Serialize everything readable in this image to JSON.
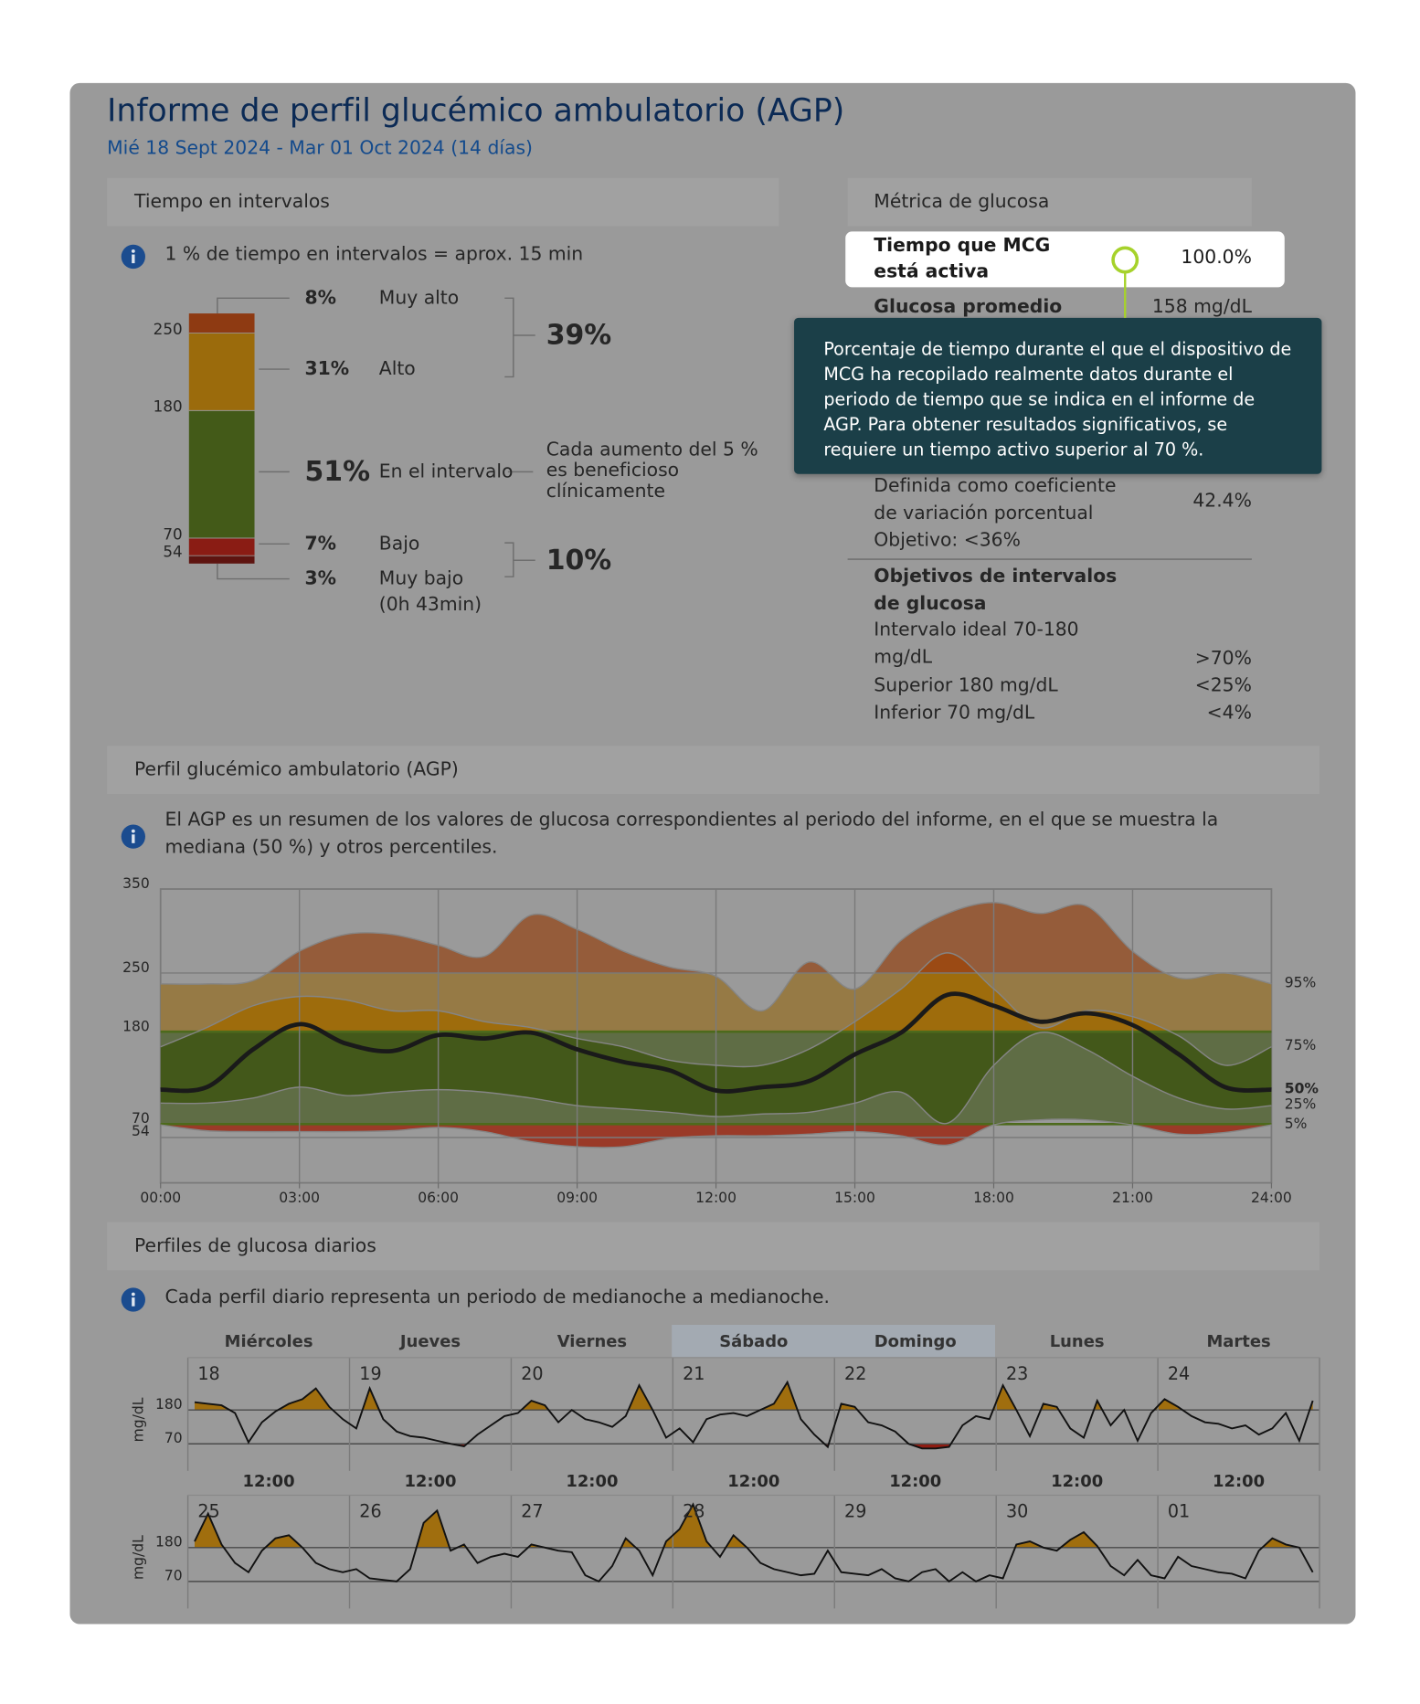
{
  "header": {
    "title": "Informe de perfil glucémico ambulatorio (AGP)",
    "date_range": "Mié 18 Sept 2024 - Mar 01 Oct 2024 (14 días)"
  },
  "time_in_ranges": {
    "heading": "Tiempo en intervalos",
    "info": "1 % de tiempo en intervalos = aprox. 15 min",
    "ranges": [
      {
        "label": "Muy alto",
        "color": "#8e3a12"
      },
      {
        "label": "Alto",
        "color": "#9b6b0c"
      },
      {
        "label": "En el intervalo",
        "color": "#435a18"
      },
      {
        "label": "Bajo",
        "color": "#8a1c14"
      },
      {
        "label": "Muy bajo",
        "color": "#5e1410"
      }
    ],
    "values": [
      8,
      31,
      51,
      7,
      3
    ],
    "value_labels": [
      "8%",
      "31%",
      "51%",
      "7%",
      "3%"
    ],
    "thresholds": [
      250,
      180,
      70,
      54
    ],
    "very_low_duration": "(0h 43min)",
    "groups": [
      "39%",
      "10%"
    ],
    "note": "Cada aumento del 5 % es beneficioso clínicamente"
  },
  "glucose_metrics": {
    "heading": "Métrica de glucosa",
    "active_time": {
      "label": "Tiempo que MCG está activa",
      "value": "100.0%"
    },
    "mean_glucose": {
      "label": "Glucosa promedio",
      "value": "158 mg/dL"
    },
    "variability": {
      "description": "Definida como coeficiente de variación porcentual",
      "target": "Objetivo: <36%",
      "value": "42.4%"
    },
    "targets": {
      "heading": "Objetivos de intervalos de glucosa",
      "rows": [
        [
          "Intervalo ideal 70-180 mg/dL",
          ">70%"
        ],
        [
          "Superior 180 mg/dL",
          "<25%"
        ],
        [
          "Inferior 70 mg/dL",
          "<4%"
        ]
      ]
    }
  },
  "tooltip": "Porcentaje de tiempo durante el que el dispositivo de MCG ha recopilado realmente datos durante el periodo de tiempo que se indica en el informe de AGP. Para obtener resultados significativos, se requiere un tiempo activo superior al 70 %.",
  "chart_data": {
    "type": "line",
    "title": "Perfil glucémico ambulatorio (AGP)",
    "subtitle": "El AGP es un resumen de los valores de glucosa correspondientes al periodo del informe, en el que se muestra la mediana (50 %) y otros percentiles.",
    "x": [
      0,
      1,
      2,
      3,
      4,
      5,
      6,
      7,
      8,
      9,
      10,
      11,
      12,
      13,
      14,
      15,
      16,
      17,
      18,
      19,
      20,
      21,
      22,
      23,
      24
    ],
    "xlim": [
      0,
      24
    ],
    "xticks": [
      {
        "value": 0,
        "label": "00:00"
      },
      {
        "value": 3,
        "label": "03:00"
      },
      {
        "value": 6,
        "label": "06:00"
      },
      {
        "value": 9,
        "label": "09:00"
      },
      {
        "value": 12,
        "label": "12:00"
      },
      {
        "value": 15,
        "label": "15:00"
      },
      {
        "value": 18,
        "label": "18:00"
      },
      {
        "value": 21,
        "label": "21:00"
      },
      {
        "value": 24,
        "label": "24:00"
      }
    ],
    "ylim": [
      0,
      350
    ],
    "yticks": [
      54,
      70,
      180,
      250,
      350
    ],
    "target_range": [
      70,
      180
    ],
    "band_colors": {
      "outer": [
        "#955c3a",
        "#967a45",
        "#5f6d45",
        "#9a3a28"
      ],
      "inner": [
        "#9b4a14",
        "#9e6c0c",
        "#43581a",
        "#8c1e12"
      ]
    },
    "series": [
      {
        "name": "95%",
        "color": "#858585",
        "values": [
          237,
          237,
          241,
          276,
          296,
          296,
          283,
          270,
          319,
          302,
          276,
          257,
          246,
          205,
          263,
          231,
          289,
          321,
          334,
          321,
          330,
          276,
          244,
          250,
          237
        ]
      },
      {
        "name": "75%",
        "color": "#858585",
        "values": [
          162,
          185,
          211,
          222,
          218,
          205,
          205,
          192,
          185,
          172,
          162,
          146,
          140,
          140,
          159,
          192,
          231,
          274,
          231,
          185,
          205,
          198,
          175,
          140,
          162
        ]
      },
      {
        "name": "50%",
        "color": "#1a1a1a",
        "values": [
          111,
          114,
          159,
          189,
          166,
          157,
          176,
          172,
          179,
          159,
          144,
          134,
          110,
          114,
          121,
          153,
          179,
          224,
          211,
          192,
          202,
          188,
          153,
          114,
          111
        ]
      },
      {
        "name": "25%",
        "color": "#858585",
        "values": [
          95,
          95,
          101,
          114,
          104,
          108,
          111,
          108,
          101,
          92,
          88,
          84,
          79,
          82,
          84,
          95,
          108,
          71,
          140,
          179,
          159,
          127,
          101,
          88,
          92
        ]
      },
      {
        "name": "5%",
        "color": "#858585",
        "values": [
          69,
          62,
          61,
          61,
          61,
          62,
          66,
          61,
          49,
          43,
          43,
          53,
          56,
          56,
          58,
          61,
          56,
          45,
          69,
          75,
          75,
          69,
          58,
          60,
          69
        ]
      }
    ]
  },
  "daily": {
    "heading": "Perfiles de glucosa diarios",
    "info": "Cada perfil diario representa un periodo de medianoche a medianoche.",
    "weekdays": [
      "Miércoles",
      "Jueves",
      "Viernes",
      "Sábado",
      "Domingo",
      "Lunes",
      "Martes"
    ],
    "y_label": "mg/dL",
    "ylim": [
      0,
      350
    ],
    "yticks": [
      180,
      70
    ],
    "target_range": [
      70,
      180
    ],
    "noon_label": "12:00",
    "hours": [
      1,
      3,
      5,
      7,
      9,
      11,
      13,
      15,
      17,
      19,
      21,
      23
    ],
    "xlim": [
      0,
      24
    ],
    "rows": [
      {
        "days": [
          {
            "date": "18",
            "values": [
              205,
              200,
              195,
              170,
              75,
              140,
              175,
              200,
              215,
              250,
              190,
              150
            ]
          },
          {
            "date": "19",
            "values": [
              120,
              250,
              150,
              110,
              95,
              90,
              80,
              70,
              62,
              100,
              130,
              160
            ]
          },
          {
            "date": "20",
            "values": [
              170,
              210,
              195,
              140,
              180,
              150,
              140,
              125,
              160,
              260,
              180,
              90
            ]
          },
          {
            "date": "21",
            "values": [
              120,
              75,
              150,
              165,
              170,
              160,
              180,
              200,
              270,
              150,
              100,
              60
            ]
          },
          {
            "date": "22",
            "values": [
              200,
              190,
              140,
              130,
              110,
              70,
              55,
              55,
              60,
              130,
              160,
              150
            ]
          },
          {
            "date": "23",
            "values": [
              260,
              180,
              95,
              200,
              190,
              120,
              90,
              210,
              130,
              180,
              80,
              170
            ]
          },
          {
            "date": "24",
            "values": [
              215,
              190,
              160,
              140,
              135,
              120,
              130,
              100,
              120,
              170,
              80,
              210
            ]
          }
        ]
      },
      {
        "days": [
          {
            "date": "25",
            "values": [
              200,
              290,
              190,
              130,
              100,
              170,
              210,
              220,
              180,
              130,
              110,
              100
            ]
          },
          {
            "date": "26",
            "values": [
              110,
              80,
              75,
              70,
              110,
              260,
              300,
              170,
              190,
              130,
              150,
              160
            ]
          },
          {
            "date": "27",
            "values": [
              150,
              190,
              180,
              170,
              165,
              90,
              70,
              120,
              210,
              170,
              90,
              200
            ]
          },
          {
            "date": "28",
            "values": [
              240,
              320,
              200,
              150,
              220,
              180,
              130,
              110,
              100,
              90,
              95,
              170
            ]
          },
          {
            "date": "29",
            "values": [
              100,
              95,
              90,
              110,
              80,
              70,
              100,
              110,
              70,
              100,
              70,
              90
            ]
          },
          {
            "date": "30",
            "values": [
              80,
              190,
              200,
              180,
              170,
              205,
              230,
              185,
              120,
              90,
              140,
              90
            ]
          },
          {
            "date": "01",
            "values": [
              80,
              150,
              120,
              110,
              100,
              95,
              80,
              170,
              210,
              190,
              180,
              100
            ]
          }
        ]
      }
    ]
  }
}
